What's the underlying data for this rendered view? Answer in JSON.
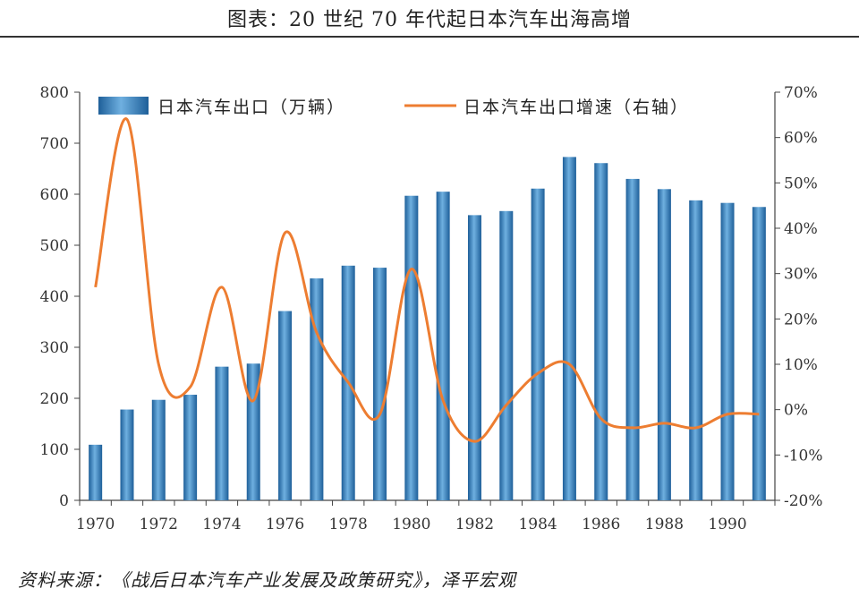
{
  "title": "图表：20 世纪 70 年代起日本汽车出海高增",
  "source": "资料来源：《战后日本汽车产业发展及政策研究》，泽平宏观",
  "chart_data": {
    "type": "bar",
    "categories": [
      "1970",
      "1971",
      "1972",
      "1973",
      "1974",
      "1975",
      "1976",
      "1977",
      "1978",
      "1979",
      "1980",
      "1981",
      "1982",
      "1983",
      "1984",
      "1985",
      "1986",
      "1987",
      "1988",
      "1989",
      "1990",
      "1991"
    ],
    "x_tick_labels": [
      "1970",
      "1972",
      "1974",
      "1976",
      "1978",
      "1980",
      "1982",
      "1984",
      "1986",
      "1988",
      "1990"
    ],
    "series": [
      {
        "name": "日本汽车出口（万辆）",
        "type": "bar",
        "axis": "left",
        "values": [
          109,
          178,
          197,
          207,
          262,
          268,
          371,
          435,
          460,
          456,
          597,
          605,
          559,
          567,
          611,
          673,
          661,
          630,
          610,
          588,
          583,
          575
        ]
      },
      {
        "name": "日本汽车出口增速（右轴）",
        "type": "line",
        "axis": "right",
        "values": [
          27,
          64,
          10,
          5,
          27,
          2,
          39,
          17,
          6,
          -1,
          31,
          2,
          -7,
          1,
          8,
          10,
          -2,
          -4,
          -3,
          -4,
          -1,
          -1
        ]
      }
    ],
    "y_left": {
      "min": 0,
      "max": 800,
      "ticks": [
        "0",
        "100",
        "200",
        "300",
        "400",
        "500",
        "600",
        "700",
        "800"
      ]
    },
    "y_right": {
      "min": -20,
      "max": 70,
      "ticks": [
        "-20%",
        "-10%",
        "0%",
        "10%",
        "20%",
        "30%",
        "40%",
        "50%",
        "60%",
        "70%"
      ]
    },
    "legend": {
      "position": "top"
    },
    "colors": {
      "bar": "#3f88c5",
      "bar_dark": "#1e5f99",
      "line": "#ed7d31"
    }
  }
}
